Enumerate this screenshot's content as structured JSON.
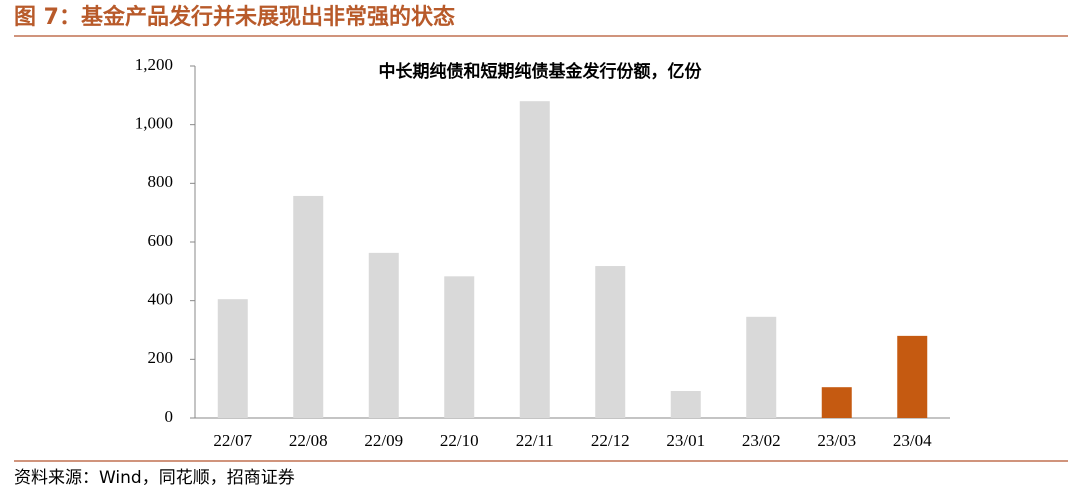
{
  "header": {
    "title": "图 7：基金产品发行并未展现出非常强的状态"
  },
  "chart_data": {
    "type": "bar",
    "title": "中长期纯债和短期纯债基金发行份额，亿份",
    "categories": [
      "22/07",
      "22/08",
      "22/09",
      "22/10",
      "22/11",
      "22/12",
      "23/01",
      "23/02",
      "23/03",
      "23/04"
    ],
    "values": [
      405,
      757,
      563,
      483,
      1080,
      518,
      92,
      345,
      105,
      280
    ],
    "colors": [
      "#d9d9d9",
      "#d9d9d9",
      "#d9d9d9",
      "#d9d9d9",
      "#d9d9d9",
      "#d9d9d9",
      "#d9d9d9",
      "#d9d9d9",
      "#c55a11",
      "#c55a11"
    ],
    "ylim": [
      0,
      1200
    ],
    "yticks": [
      0,
      200,
      400,
      600,
      800,
      {
        "value": 1000,
        "label": "1,000"
      },
      {
        "value": 1200,
        "label": "1,200"
      }
    ],
    "grid": false
  },
  "footer": {
    "source": "资料来源：Wind，同花顺，招商证券"
  }
}
